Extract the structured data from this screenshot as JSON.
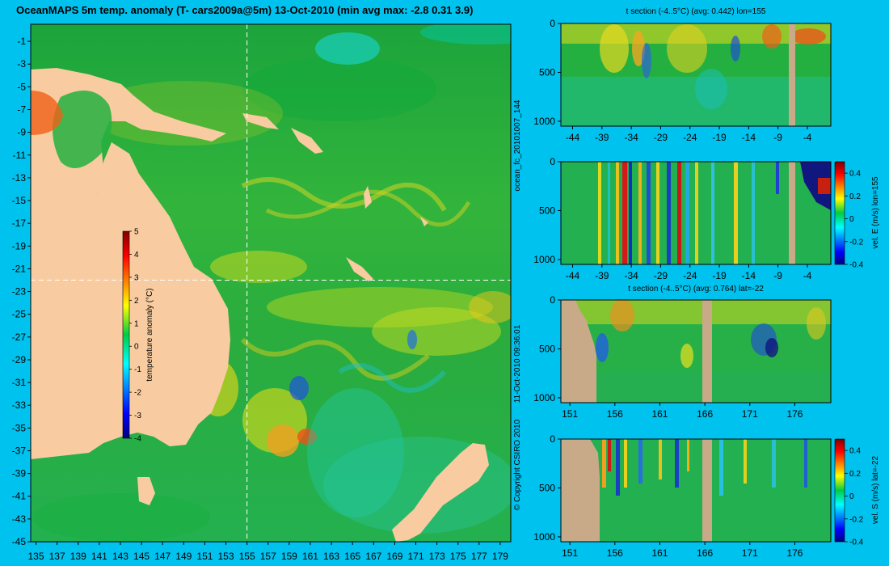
{
  "page": {
    "title": "OceanMAPS 5m temp. anomaly (T- cars2009a@5m) 13-Oct-2010 (min avg max: -2.8 0.31 3.9)",
    "side_run": "ocean_fc_20101007_144",
    "side_date": "11-Oct-2010 09:36:01",
    "side_copyright": "© Copyright CSIRO 2010",
    "colors": {
      "background": "#00c2ee",
      "land": "#f8cca0",
      "section_land": "#c8aa88",
      "section_gap": "#c8aa88"
    }
  },
  "chart_data": [
    {
      "type": "heatmap",
      "panel": "map",
      "title": "OceanMAPS 5m temp. anomaly (T- cars2009a@5m) 13-Oct-2010 (min avg max: -2.8 0.31 3.9)",
      "x_ticks": [
        "135",
        "137",
        "139",
        "141",
        "143",
        "145",
        "147",
        "149",
        "151",
        "153",
        "155",
        "157",
        "159",
        "161",
        "163",
        "165",
        "167",
        "169",
        "171",
        "173",
        "175",
        "177",
        "179"
      ],
      "y_ticks": [
        "-1",
        "-3",
        "-5",
        "-7",
        "-9",
        "-11",
        "-13",
        "-15",
        "-17",
        "-19",
        "-21",
        "-23",
        "-25",
        "-27",
        "-29",
        "-31",
        "-33",
        "-35",
        "-37",
        "-39",
        "-41",
        "-43",
        "-45"
      ],
      "xlim": [
        134.5,
        180
      ],
      "ylim": [
        -45,
        0.5
      ],
      "crosshair": {
        "lon": 155,
        "lat": -22
      },
      "colorbar": {
        "label": "temperature anomaly (°C)",
        "range": [
          -4,
          5
        ],
        "ticks": [
          "5",
          "4",
          "3",
          "2",
          "1",
          "0",
          "-1",
          "-2",
          "-3",
          "-4"
        ]
      },
      "stats": {
        "min": -2.8,
        "avg": 0.31,
        "max": 3.9
      }
    },
    {
      "type": "heatmap",
      "panel": "section-1",
      "title": "t section (-4..5°C) (avg: 0.442) lon=155",
      "x_ticks": [
        "-44",
        "-39",
        "-34",
        "-29",
        "-24",
        "-19",
        "-14",
        "-9",
        "-4"
      ],
      "y_ticks": [
        "0",
        "500",
        "1000"
      ],
      "xlim": [
        -46,
        0
      ],
      "ylim": [
        1050,
        0
      ],
      "avg": 0.442,
      "lon": 155
    },
    {
      "type": "heatmap",
      "panel": "section-2",
      "title": "",
      "x_ticks": [
        "-44",
        "-39",
        "-34",
        "-29",
        "-24",
        "-19",
        "-14",
        "-9",
        "-4"
      ],
      "y_ticks": [
        "0",
        "500",
        "1000"
      ],
      "xlim": [
        -46,
        0
      ],
      "ylim": [
        1050,
        0
      ],
      "colorbar": {
        "label": "vel. E (m/s) lon=155",
        "range": [
          -0.4,
          0.5
        ],
        "ticks": [
          "0.4",
          "0.2",
          "0",
          "-0.2",
          "-0.4"
        ]
      }
    },
    {
      "type": "heatmap",
      "panel": "section-3",
      "title": "t section (-4..5°C) (avg: 0.764) lat=-22",
      "x_ticks": [
        "151",
        "156",
        "161",
        "166",
        "171",
        "176"
      ],
      "y_ticks": [
        "0",
        "500",
        "1000"
      ],
      "xlim": [
        150,
        180
      ],
      "ylim": [
        1050,
        0
      ],
      "avg": 0.764,
      "lat": -22
    },
    {
      "type": "heatmap",
      "panel": "section-4",
      "title": "",
      "x_ticks": [
        "151",
        "156",
        "161",
        "166",
        "171",
        "176"
      ],
      "y_ticks": [
        "0",
        "500",
        "1000"
      ],
      "xlim": [
        150,
        180
      ],
      "ylim": [
        1050,
        0
      ],
      "colorbar": {
        "label": "vel. S (m/s) lat=-22",
        "range": [
          -0.4,
          0.5
        ],
        "ticks": [
          "0.4",
          "0.2",
          "0",
          "-0.2",
          "-0.4"
        ]
      }
    }
  ]
}
